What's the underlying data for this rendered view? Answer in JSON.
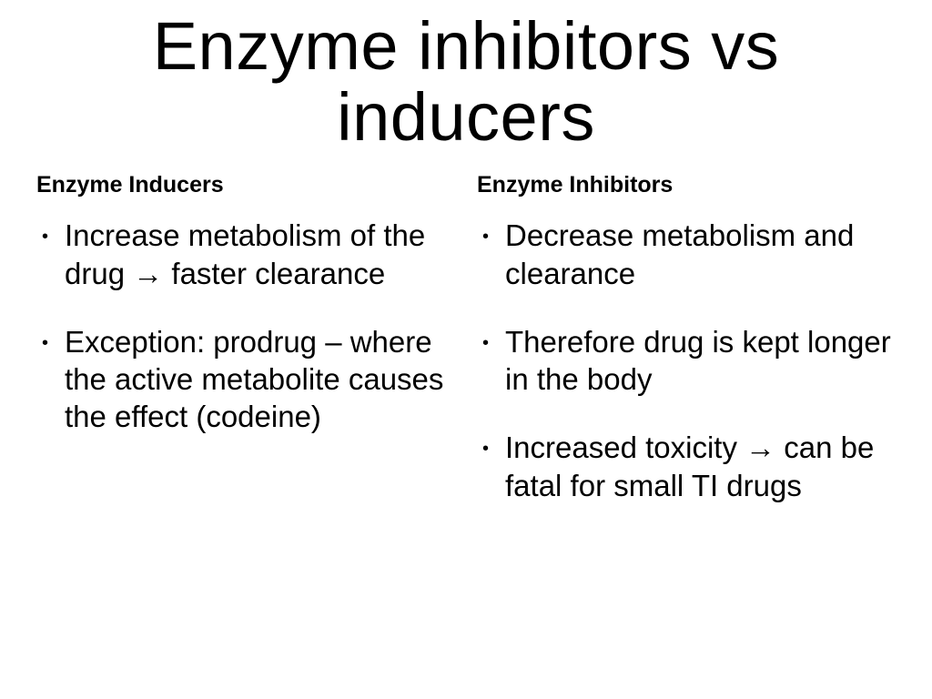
{
  "title": "Enzyme inhibitors vs inducers",
  "left": {
    "heading": "Enzyme Inducers",
    "items": [
      "Increase metabolism of the drug → faster clearance",
      "Exception: prodrug – where the active metabolite causes the effect (codeine)"
    ]
  },
  "right": {
    "heading": "Enzyme Inhibitors",
    "items": [
      "Decrease metabolism and clearance",
      "Therefore drug is kept longer in the body",
      "Increased toxicity → can be fatal for small TI drugs"
    ]
  },
  "style": {
    "background_color": "#ffffff",
    "text_color": "#000000",
    "title_fontsize": 74,
    "heading_fontsize": 25,
    "body_fontsize": 33,
    "font_family": "Arial"
  }
}
